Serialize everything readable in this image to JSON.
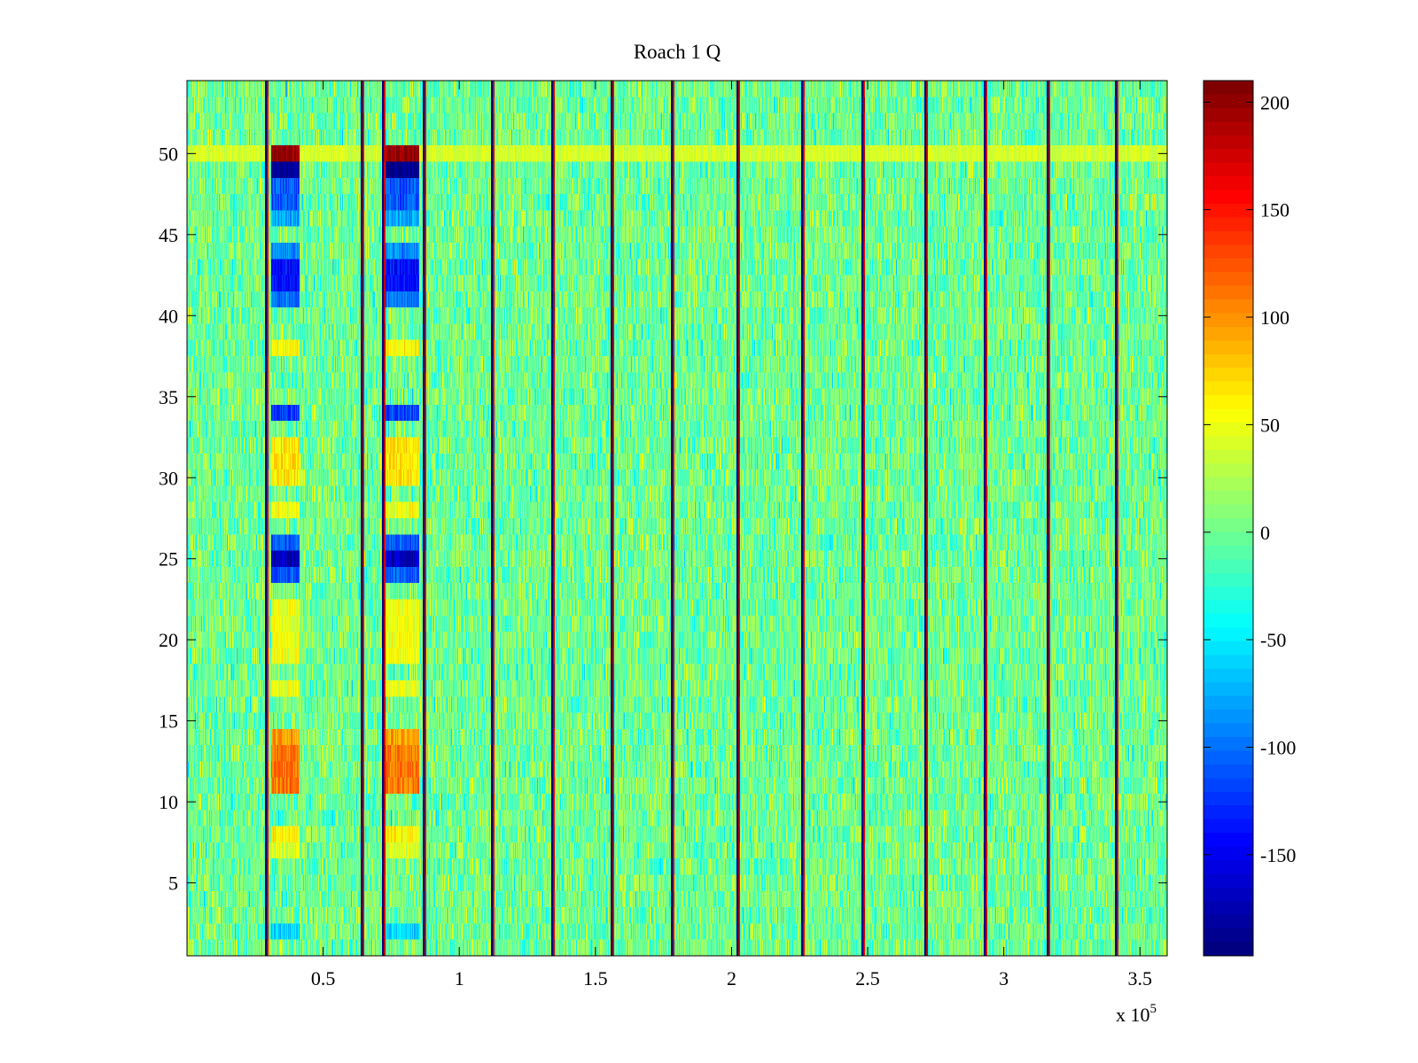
{
  "chart_data": {
    "type": "heatmap",
    "title": "Roach 1 Q",
    "xlabel": "",
    "ylabel": "",
    "x_exponent_label": {
      "base": "x 10",
      "exp": "5"
    },
    "xlim": [
      0,
      3.6
    ],
    "ylim": [
      0.5,
      54.5
    ],
    "rows": 54,
    "x_ticks": [
      {
        "value": 0.5,
        "label": "0.5"
      },
      {
        "value": 1.0,
        "label": "1"
      },
      {
        "value": 1.5,
        "label": "1.5"
      },
      {
        "value": 2.0,
        "label": "2"
      },
      {
        "value": 2.5,
        "label": "2.5"
      },
      {
        "value": 3.0,
        "label": "3"
      },
      {
        "value": 3.5,
        "label": "3.5"
      }
    ],
    "y_ticks": [
      {
        "value": 5,
        "label": "5"
      },
      {
        "value": 10,
        "label": "10"
      },
      {
        "value": 15,
        "label": "15"
      },
      {
        "value": 20,
        "label": "20"
      },
      {
        "value": 25,
        "label": "25"
      },
      {
        "value": 30,
        "label": "30"
      },
      {
        "value": 35,
        "label": "35"
      },
      {
        "value": 40,
        "label": "40"
      },
      {
        "value": 45,
        "label": "45"
      },
      {
        "value": 50,
        "label": "50"
      }
    ],
    "colorbar": {
      "colormap": "jet",
      "clim": [
        -197,
        210
      ],
      "ticks": [
        {
          "value": 200,
          "label": "200"
        },
        {
          "value": 150,
          "label": "150"
        },
        {
          "value": 100,
          "label": "100"
        },
        {
          "value": 50,
          "label": "50"
        },
        {
          "value": 0,
          "label": "0"
        },
        {
          "value": -50,
          "label": "-50"
        },
        {
          "value": -100,
          "label": "-100"
        },
        {
          "value": -150,
          "label": "-150"
        }
      ]
    },
    "background_value_range": [
      -40,
      40
    ],
    "transition_lines_x": [
      0.29,
      0.64,
      0.72,
      0.87,
      1.12,
      1.34,
      1.56,
      1.78,
      2.02,
      2.26,
      2.48,
      2.71,
      2.93,
      3.16,
      3.41
    ],
    "structured_bands": [
      {
        "x_range": [
          0.31,
          0.41
        ],
        "name": "band-1"
      },
      {
        "x_range": [
          0.73,
          0.85
        ],
        "name": "band-2"
      }
    ],
    "band_row_values": [
      {
        "rows": [
          50,
          50
        ],
        "value": 200
      },
      {
        "rows": [
          49,
          49
        ],
        "value": -190
      },
      {
        "rows": [
          47,
          48
        ],
        "value": -110
      },
      {
        "rows": [
          46,
          46
        ],
        "value": -80
      },
      {
        "rows": [
          44,
          44
        ],
        "value": -90
      },
      {
        "rows": [
          42,
          43
        ],
        "value": -140
      },
      {
        "rows": [
          41,
          41
        ],
        "value": -100
      },
      {
        "rows": [
          38,
          38
        ],
        "value": 60
      },
      {
        "rows": [
          34,
          34
        ],
        "value": -120
      },
      {
        "rows": [
          30,
          32
        ],
        "value": 65
      },
      {
        "rows": [
          28,
          28
        ],
        "value": 55
      },
      {
        "rows": [
          26,
          26
        ],
        "value": -110
      },
      {
        "rows": [
          25,
          25
        ],
        "value": -170
      },
      {
        "rows": [
          24,
          24
        ],
        "value": -110
      },
      {
        "rows": [
          19,
          22
        ],
        "value": 50
      },
      {
        "rows": [
          17,
          17
        ],
        "value": 45
      },
      {
        "rows": [
          14,
          14
        ],
        "value": 95
      },
      {
        "rows": [
          11,
          13
        ],
        "value": 110
      },
      {
        "rows": [
          8,
          8
        ],
        "value": 60
      },
      {
        "rows": [
          7,
          7
        ],
        "value": 40
      },
      {
        "rows": [
          2,
          2
        ],
        "value": -60
      }
    ]
  }
}
